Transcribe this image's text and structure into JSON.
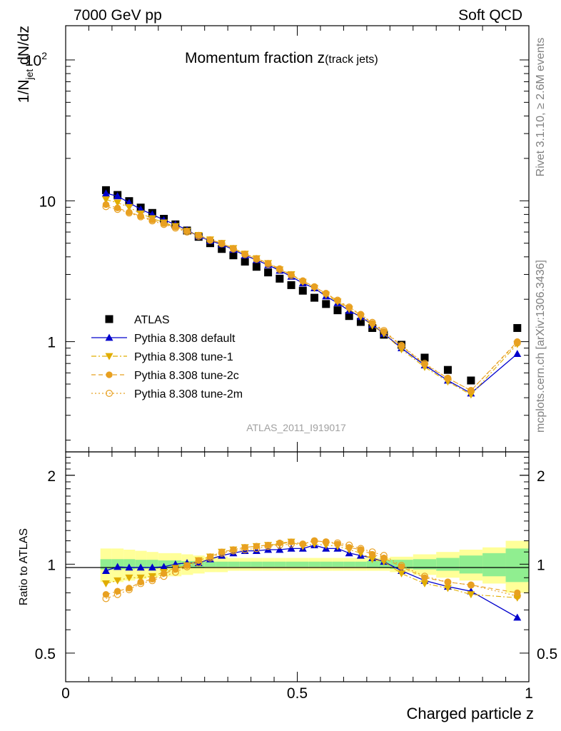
{
  "header": {
    "left": "7000 GeV pp",
    "right": "Soft QCD"
  },
  "side_labels": {
    "rivet": "Rivet 3.1.10, ≥ 2.6M events",
    "mcplots": "mcplots.cern.ch [arXiv:1306.3436]"
  },
  "chart_data": [
    {
      "type": "scatter",
      "panel": "main",
      "title_main": "Momentum fraction z",
      "title_sub": "(track jets)",
      "watermark": "ATLAS_2011_I919017",
      "ylabel_parts": [
        "1/N",
        "jet",
        " dN/dz"
      ],
      "y_scale": "log",
      "ylim": [
        0.165,
        175
      ],
      "xlim": [
        0,
        1
      ],
      "y_ticks": [
        {
          "value": 1,
          "label": "1"
        },
        {
          "value": 10,
          "label": "10"
        },
        {
          "value": 100,
          "label": "10",
          "sup": "2"
        }
      ],
      "legend_position": "bottom-left",
      "x": [
        0.087,
        0.112,
        0.137,
        0.162,
        0.187,
        0.212,
        0.237,
        0.262,
        0.287,
        0.312,
        0.337,
        0.362,
        0.387,
        0.412,
        0.437,
        0.462,
        0.487,
        0.512,
        0.537,
        0.562,
        0.587,
        0.612,
        0.637,
        0.662,
        0.687,
        0.725,
        0.775,
        0.825,
        0.875,
        0.975
      ],
      "series": [
        {
          "name": "ATLAS",
          "marker": "square",
          "color": "#000000",
          "line": "none",
          "values": [
            11.9,
            11.0,
            9.95,
            8.95,
            8.2,
            7.45,
            6.8,
            6.15,
            5.55,
            5.0,
            4.55,
            4.1,
            3.7,
            3.4,
            3.1,
            2.8,
            2.52,
            2.3,
            2.05,
            1.85,
            1.67,
            1.52,
            1.38,
            1.25,
            1.12,
            0.95,
            0.77,
            0.63,
            0.53,
            1.25
          ]
        },
        {
          "name": "Pythia 8.308 default",
          "marker": "triangle-up",
          "color": "#0000cc",
          "line": "solid",
          "values": [
            11.3,
            10.8,
            9.7,
            8.7,
            8.0,
            7.3,
            6.8,
            6.2,
            5.6,
            5.2,
            4.9,
            4.5,
            4.1,
            3.8,
            3.5,
            3.2,
            2.9,
            2.6,
            2.4,
            2.1,
            1.88,
            1.66,
            1.5,
            1.32,
            1.14,
            0.9,
            0.68,
            0.53,
            0.43,
            0.82
          ]
        },
        {
          "name": "Pythia 8.308 tune-1",
          "marker": "triangle-down",
          "color": "#e0ad00",
          "line": "dashdot",
          "values": [
            10.2,
            9.7,
            9.0,
            8.1,
            7.5,
            7.0,
            6.6,
            6.1,
            5.7,
            5.3,
            5.0,
            4.6,
            4.2,
            3.9,
            3.6,
            3.25,
            3.0,
            2.65,
            2.4,
            2.15,
            1.92,
            1.7,
            1.5,
            1.3,
            1.14,
            0.88,
            0.66,
            0.52,
            0.42,
            0.96
          ]
        },
        {
          "name": "Pythia 8.308 tune-2c",
          "marker": "circle",
          "color": "#e8a020",
          "line": "dashed",
          "values": [
            9.4,
            8.9,
            8.3,
            7.8,
            7.3,
            6.9,
            6.5,
            6.1,
            5.7,
            5.3,
            5.0,
            4.6,
            4.2,
            3.9,
            3.6,
            3.3,
            3.0,
            2.7,
            2.45,
            2.2,
            1.95,
            1.74,
            1.55,
            1.35,
            1.18,
            0.93,
            0.69,
            0.55,
            0.45,
            1.0
          ]
        },
        {
          "name": "Pythia 8.308 tune-2m",
          "marker": "open-circle",
          "color": "#e8a020",
          "line": "dotted",
          "values": [
            9.1,
            8.7,
            8.2,
            7.7,
            7.2,
            6.8,
            6.4,
            6.0,
            5.6,
            5.25,
            4.95,
            4.55,
            4.15,
            3.85,
            3.55,
            3.25,
            2.95,
            2.7,
            2.45,
            2.2,
            1.97,
            1.76,
            1.56,
            1.37,
            1.2,
            0.94,
            0.7,
            0.55,
            0.45,
            0.98
          ]
        }
      ]
    },
    {
      "type": "scatter",
      "panel": "ratio",
      "ylabel": "Ratio to ATLAS",
      "xlabel": "Charged particle z",
      "y_scale": "log",
      "ylim": [
        0.4,
        2.4
      ],
      "xlim": [
        0,
        1
      ],
      "y_ticks": [
        {
          "value": 0.5,
          "label": "0.5"
        },
        {
          "value": 1,
          "label": "1"
        },
        {
          "value": 2,
          "label": "2"
        }
      ],
      "x_ticks": [
        {
          "value": 0,
          "label": "0"
        },
        {
          "value": 0.5,
          "label": "0.5"
        },
        {
          "value": 1,
          "label": "1"
        }
      ],
      "bands": {
        "bin_edges": [
          0.075,
          0.1,
          0.125,
          0.15,
          0.175,
          0.2,
          0.225,
          0.25,
          0.275,
          0.3,
          0.325,
          0.35,
          0.375,
          0.4,
          0.425,
          0.45,
          0.475,
          0.5,
          0.525,
          0.55,
          0.575,
          0.6,
          0.625,
          0.65,
          0.675,
          0.7,
          0.75,
          0.8,
          0.85,
          0.9,
          0.95,
          1.0
        ],
        "stat_color": "#90ee90",
        "total_color": "#ffff99",
        "stat_half_width": [
          0.04,
          0.04,
          0.04,
          0.035,
          0.035,
          0.03,
          0.03,
          0.025,
          0.025,
          0.02,
          0.02,
          0.02,
          0.02,
          0.02,
          0.02,
          0.02,
          0.02,
          0.02,
          0.02,
          0.02,
          0.02,
          0.02,
          0.02,
          0.025,
          0.03,
          0.035,
          0.04,
          0.05,
          0.07,
          0.09,
          0.13
        ],
        "total_half_width": [
          0.13,
          0.13,
          0.12,
          0.11,
          0.1,
          0.09,
          0.09,
          0.08,
          0.07,
          0.06,
          0.06,
          0.05,
          0.05,
          0.05,
          0.05,
          0.05,
          0.05,
          0.05,
          0.05,
          0.05,
          0.05,
          0.05,
          0.05,
          0.05,
          0.05,
          0.06,
          0.08,
          0.1,
          0.12,
          0.14,
          0.2
        ]
      },
      "series": [
        {
          "name": "Pythia 8.308 default",
          "marker": "triangle-up",
          "color": "#0000cc",
          "line": "solid",
          "values": [
            0.95,
            0.98,
            0.975,
            0.975,
            0.975,
            0.98,
            1.0,
            1.01,
            1.01,
            1.04,
            1.07,
            1.09,
            1.11,
            1.11,
            1.12,
            1.12,
            1.13,
            1.13,
            1.16,
            1.13,
            1.13,
            1.09,
            1.07,
            1.05,
            1.02,
            0.95,
            0.88,
            0.84,
            0.81,
            0.66
          ]
        },
        {
          "name": "Pythia 8.308 tune-1",
          "marker": "triangle-down",
          "color": "#e0ad00",
          "line": "dashdot",
          "values": [
            0.86,
            0.88,
            0.9,
            0.9,
            0.91,
            0.94,
            0.97,
            0.99,
            1.03,
            1.06,
            1.1,
            1.12,
            1.14,
            1.15,
            1.16,
            1.17,
            1.19,
            1.15,
            1.17,
            1.16,
            1.15,
            1.12,
            1.09,
            1.04,
            1.02,
            0.93,
            0.86,
            0.83,
            0.79,
            0.77
          ]
        },
        {
          "name": "Pythia 8.308 tune-2c",
          "marker": "circle",
          "color": "#e8a020",
          "line": "dashed",
          "values": [
            0.79,
            0.81,
            0.83,
            0.87,
            0.89,
            0.93,
            0.96,
            0.99,
            1.03,
            1.06,
            1.1,
            1.12,
            1.14,
            1.15,
            1.16,
            1.18,
            1.19,
            1.17,
            1.2,
            1.19,
            1.17,
            1.14,
            1.12,
            1.08,
            1.05,
            0.98,
            0.9,
            0.87,
            0.85,
            0.8
          ]
        },
        {
          "name": "Pythia 8.308 tune-2m",
          "marker": "open-circle",
          "color": "#e8a020",
          "line": "dotted",
          "values": [
            0.765,
            0.79,
            0.82,
            0.86,
            0.88,
            0.91,
            0.94,
            0.98,
            1.01,
            1.05,
            1.09,
            1.11,
            1.12,
            1.13,
            1.15,
            1.16,
            1.17,
            1.17,
            1.2,
            1.19,
            1.18,
            1.16,
            1.13,
            1.1,
            1.07,
            0.99,
            0.91,
            0.87,
            0.85,
            0.78
          ]
        }
      ]
    }
  ]
}
